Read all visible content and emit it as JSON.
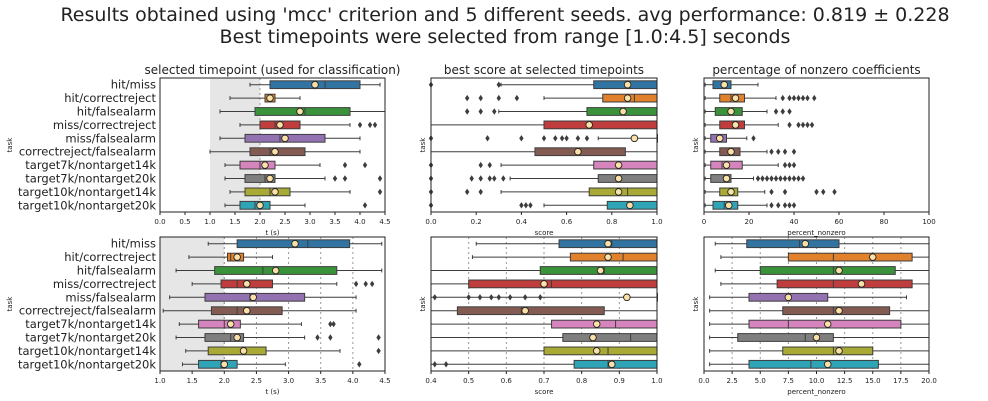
{
  "title_line1": "Results obtained using 'mcc' criterion and 5 different seeds.  avg performance: 0.819 ± 0.228",
  "title_line2": "Best timepoints were selected from range [1.0:4.5] seconds",
  "colors": [
    "#3274a1",
    "#e1812c",
    "#3a923a",
    "#c03d3e",
    "#9372b2",
    "#845b53",
    "#d684bd",
    "#7f7f7f",
    "#a9aa35",
    "#2fa4b7"
  ],
  "chart_data": [
    {
      "type": "box",
      "title": "selected timepoint (used for classification)",
      "xlabel": "t (s)",
      "ylabel": "task",
      "xlim": [
        0,
        4.5
      ],
      "xticks": [
        "0.0",
        "0.5",
        "1.0",
        "1.5",
        "2.0",
        "2.5",
        "3.0",
        "3.5",
        "4.0",
        "4.5"
      ],
      "shade": [
        1.0,
        2.0
      ],
      "vlines": [],
      "categories": [
        "hit/miss",
        "hit/correctreject",
        "hit/falsealarm",
        "miss/correctreject",
        "miss/falsealarm",
        "correctreject/falsealarm",
        "target7k/nontarget14k",
        "target7k/nontarget20k",
        "target10k/nontarget14k",
        "target10k/nontarget20k"
      ],
      "boxes": [
        {
          "wl": 1.8,
          "q1": 2.2,
          "med": 3.3,
          "q3": 4.0,
          "wh": 4.4,
          "mean": 3.1,
          "out": []
        },
        {
          "wl": 1.4,
          "q1": 2.1,
          "med": 2.2,
          "q3": 2.3,
          "wh": 2.8,
          "mean": 2.2,
          "out": []
        },
        {
          "wl": 1.2,
          "q1": 1.9,
          "med": 2.9,
          "q3": 3.8,
          "wh": 4.5,
          "mean": 2.8,
          "out": []
        },
        {
          "wl": 1.6,
          "q1": 2.0,
          "med": 2.3,
          "q3": 2.8,
          "wh": 3.8,
          "mean": 2.4,
          "out": [
            4.0,
            4.2,
            4.3
          ]
        },
        {
          "wl": 1.2,
          "q1": 1.7,
          "med": 2.4,
          "q3": 3.3,
          "wh": 4.0,
          "mean": 2.5,
          "out": []
        },
        {
          "wl": 1.0,
          "q1": 1.8,
          "med": 2.2,
          "q3": 2.9,
          "wh": 4.0,
          "mean": 2.3,
          "out": []
        },
        {
          "wl": 1.3,
          "q1": 1.6,
          "med": 2.0,
          "q3": 2.3,
          "wh": 3.2,
          "mean": 2.1,
          "out": [
            3.7,
            4.1
          ]
        },
        {
          "wl": 1.3,
          "q1": 1.7,
          "med": 2.1,
          "q3": 2.3,
          "wh": 3.3,
          "mean": 2.2,
          "out": [
            3.5,
            3.7,
            4.4
          ]
        },
        {
          "wl": 1.4,
          "q1": 1.7,
          "med": 2.2,
          "q3": 2.6,
          "wh": 3.8,
          "mean": 2.3,
          "out": [
            4.4
          ]
        },
        {
          "wl": 1.3,
          "q1": 1.6,
          "med": 1.9,
          "q3": 2.2,
          "wh": 2.9,
          "mean": 2.0,
          "out": [
            4.1
          ]
        }
      ]
    },
    {
      "type": "box",
      "title": "best score at selected timepoints",
      "xlabel": "score",
      "ylabel": "task",
      "xlim": [
        0,
        1.0
      ],
      "xticks": [
        "0.0",
        "0.2",
        "0.4",
        "0.6",
        "0.8",
        "1.0"
      ],
      "shade": null,
      "vlines": [],
      "categories": [
        "hit/miss",
        "hit/correctreject",
        "hit/falsealarm",
        "miss/correctreject",
        "miss/falsealarm",
        "correctreject/falsealarm",
        "target7k/nontarget14k",
        "target7k/nontarget20k",
        "target10k/nontarget14k",
        "target10k/nontarget20k"
      ],
      "boxes": [
        {
          "wl": 0.31,
          "q1": 0.72,
          "med": 0.88,
          "q3": 1.0,
          "wh": 1.0,
          "mean": 0.87,
          "out": [
            0.0,
            0.3
          ]
        },
        {
          "wl": 0.5,
          "q1": 0.76,
          "med": 0.9,
          "q3": 1.0,
          "wh": 1.0,
          "mean": 0.87,
          "out": [
            0.16,
            0.22,
            0.3,
            0.38
          ]
        },
        {
          "wl": 0.3,
          "q1": 0.69,
          "med": 0.85,
          "q3": 1.0,
          "wh": 1.0,
          "mean": 0.85,
          "out": [
            0.16,
            0.22,
            0.28
          ]
        },
        {
          "wl": 0.0,
          "q1": 0.5,
          "med": 0.7,
          "q3": 1.0,
          "wh": 1.0,
          "mean": 0.7,
          "out": []
        },
        {
          "wl": 0.74,
          "q1": 1.0,
          "med": 1.0,
          "q3": 1.0,
          "wh": 1.0,
          "mean": 0.9,
          "out": [
            0.0,
            0.25,
            0.4,
            0.5,
            0.55,
            0.58,
            0.6,
            0.65,
            0.69
          ]
        },
        {
          "wl": 0.0,
          "q1": 0.46,
          "med": 0.65,
          "q3": 0.86,
          "wh": 1.0,
          "mean": 0.65,
          "out": []
        },
        {
          "wl": 0.31,
          "q1": 0.72,
          "med": 0.83,
          "q3": 1.0,
          "wh": 1.0,
          "mean": 0.83,
          "out": [
            0.0,
            0.22,
            0.26
          ]
        },
        {
          "wl": 0.35,
          "q1": 0.74,
          "med": 0.83,
          "q3": 1.0,
          "wh": 1.0,
          "mean": 0.83,
          "out": [
            0.0,
            0.18,
            0.22,
            0.26,
            0.28,
            0.32
          ]
        },
        {
          "wl": 0.31,
          "q1": 0.7,
          "med": 0.87,
          "q3": 1.0,
          "wh": 1.0,
          "mean": 0.83,
          "out": [
            0.0,
            0.16,
            0.22
          ]
        },
        {
          "wl": 0.5,
          "q1": 0.78,
          "med": 0.88,
          "q3": 1.0,
          "wh": 1.0,
          "mean": 0.88,
          "out": [
            0.0,
            0.4,
            0.42,
            0.44
          ]
        }
      ]
    },
    {
      "type": "box",
      "title": "percentage of nonzero coefficients",
      "xlabel": "percent_nonzero",
      "ylabel": "task",
      "xlim": [
        0,
        100
      ],
      "xticks": [
        "0",
        "20",
        "40",
        "60",
        "80",
        "100"
      ],
      "shade": null,
      "vlines": [],
      "categories": [
        "hit/miss",
        "hit/correctreject",
        "hit/falsealarm",
        "miss/correctreject",
        "miss/falsealarm",
        "correctreject/falsealarm",
        "target7k/nontarget14k",
        "target7k/nontarget20k",
        "target10k/nontarget14k",
        "target10k/nontarget20k"
      ],
      "boxes": [
        {
          "wl": 0.5,
          "q1": 4,
          "med": 9,
          "q3": 12,
          "wh": 24,
          "mean": 9,
          "out": []
        },
        {
          "wl": 0.5,
          "q1": 7,
          "med": 12,
          "q3": 18,
          "wh": 32,
          "mean": 14,
          "out": [
            35,
            38,
            40,
            42,
            44,
            46,
            49
          ]
        },
        {
          "wl": 0.5,
          "q1": 5,
          "med": 12,
          "q3": 17,
          "wh": 28,
          "mean": 12,
          "out": [
            32,
            35,
            38
          ]
        },
        {
          "wl": 0.5,
          "q1": 7,
          "med": 13,
          "q3": 18,
          "wh": 33,
          "mean": 14,
          "out": [
            38,
            42,
            44,
            46,
            48
          ]
        },
        {
          "wl": 0.5,
          "q1": 3,
          "med": 7,
          "q3": 10,
          "wh": 19,
          "mean": 7,
          "out": [
            22
          ]
        },
        {
          "wl": 0.5,
          "q1": 7,
          "med": 12,
          "q3": 16,
          "wh": 28,
          "mean": 12,
          "out": [
            30,
            33,
            36,
            40
          ]
        },
        {
          "wl": 0.5,
          "q1": 3,
          "med": 8,
          "q3": 17,
          "wh": 33,
          "mean": 10,
          "out": [
            36,
            38,
            40
          ]
        },
        {
          "wl": 0.5,
          "q1": 3,
          "med": 9,
          "q3": 12,
          "wh": 22,
          "mean": 10,
          "out": [
            24,
            26,
            28,
            30,
            32,
            34,
            36,
            38,
            40,
            42,
            44
          ]
        },
        {
          "wl": 0.5,
          "q1": 7,
          "med": 12,
          "q3": 15,
          "wh": 27,
          "mean": 12,
          "out": [
            30,
            36,
            50,
            53,
            58
          ]
        },
        {
          "wl": 0.5,
          "q1": 4,
          "med": 9,
          "q3": 15,
          "wh": 28,
          "mean": 11,
          "out": [
            30,
            33,
            36,
            38,
            40
          ]
        }
      ]
    },
    {
      "type": "box",
      "title": "",
      "xlabel": "t (s)",
      "ylabel": "task",
      "xlim": [
        1.0,
        4.5
      ],
      "xticks": [
        "1.0",
        "1.5",
        "2.0",
        "2.5",
        "3.0",
        "3.5",
        "4.0",
        "4.5"
      ],
      "shade": [
        1.0,
        2.0
      ],
      "vlines": [
        2.0,
        2.5,
        3.0,
        3.5,
        4.0
      ],
      "categories": [
        "hit/miss",
        "hit/correctreject",
        "hit/falsealarm",
        "miss/correctreject",
        "miss/falsealarm",
        "correctreject/falsealarm",
        "target7k/nontarget14k",
        "target7k/nontarget20k",
        "target10k/nontarget14k",
        "target10k/nontarget20k"
      ],
      "boxes": [
        {
          "wl": 1.75,
          "q1": 2.2,
          "med": 3.3,
          "q3": 3.95,
          "wh": 4.45,
          "mean": 3.1,
          "out": []
        },
        {
          "wl": 1.45,
          "q1": 2.05,
          "med": 2.1,
          "q3": 2.3,
          "wh": 2.75,
          "mean": 2.2,
          "out": []
        },
        {
          "wl": 1.25,
          "q1": 1.85,
          "med": 2.6,
          "q3": 3.75,
          "wh": 4.45,
          "mean": 2.8,
          "out": []
        },
        {
          "wl": 1.5,
          "q1": 1.95,
          "med": 2.2,
          "q3": 2.75,
          "wh": 3.75,
          "mean": 2.35,
          "out": [
            4.05,
            4.2,
            4.3
          ]
        },
        {
          "wl": 1.15,
          "q1": 1.7,
          "med": 2.4,
          "q3": 3.25,
          "wh": 4.05,
          "mean": 2.45,
          "out": []
        },
        {
          "wl": 1.05,
          "q1": 1.8,
          "med": 2.2,
          "q3": 2.9,
          "wh": 4.05,
          "mean": 2.35,
          "out": []
        },
        {
          "wl": 1.3,
          "q1": 1.6,
          "med": 2.0,
          "q3": 2.25,
          "wh": 3.2,
          "mean": 2.1,
          "out": [
            3.65,
            3.7
          ]
        },
        {
          "wl": 1.25,
          "q1": 1.7,
          "med": 2.1,
          "q3": 2.3,
          "wh": 3.25,
          "mean": 2.2,
          "out": [
            3.45,
            3.65,
            4.4
          ]
        },
        {
          "wl": 1.4,
          "q1": 1.75,
          "med": 2.3,
          "q3": 2.65,
          "wh": 3.8,
          "mean": 2.3,
          "out": [
            4.4
          ]
        },
        {
          "wl": 1.35,
          "q1": 1.6,
          "med": 1.95,
          "q3": 2.2,
          "wh": 2.95,
          "mean": 2.0,
          "out": [
            4.1
          ]
        }
      ]
    },
    {
      "type": "box",
      "title": "",
      "xlabel": "score",
      "ylabel": "task",
      "xlim": [
        0.4,
        1.0
      ],
      "xticks": [
        "0.4",
        "0.5",
        "0.6",
        "0.7",
        "0.8",
        "0.9",
        "1.0"
      ],
      "shade": null,
      "vlines": [
        0.5,
        0.6,
        0.7,
        0.8,
        0.9
      ],
      "categories": [
        "hit/miss",
        "hit/correctreject",
        "hit/falsealarm",
        "miss/correctreject",
        "miss/falsealarm",
        "correctreject/falsealarm",
        "target7k/nontarget14k",
        "target7k/nontarget20k",
        "target10k/nontarget14k",
        "target10k/nontarget20k"
      ],
      "boxes": [
        {
          "wl": 0.52,
          "q1": 0.74,
          "med": 0.88,
          "q3": 1.0,
          "wh": 1.0,
          "mean": 0.87,
          "out": []
        },
        {
          "wl": 0.51,
          "q1": 0.77,
          "med": 0.91,
          "q3": 1.0,
          "wh": 1.0,
          "mean": 0.87,
          "out": []
        },
        {
          "wl": 0.4,
          "q1": 0.69,
          "med": 0.86,
          "q3": 1.0,
          "wh": 1.0,
          "mean": 0.85,
          "out": []
        },
        {
          "wl": 0.4,
          "q1": 0.5,
          "med": 0.72,
          "q3": 1.0,
          "wh": 1.0,
          "mean": 0.7,
          "out": []
        },
        {
          "wl": 0.4,
          "q1": 1.0,
          "med": 1.0,
          "q3": 1.0,
          "wh": 1.0,
          "mean": 0.92,
          "out": [
            0.41,
            0.5,
            0.53,
            0.56,
            0.58,
            0.61,
            0.65,
            0.69
          ]
        },
        {
          "wl": 0.4,
          "q1": 0.47,
          "med": 0.64,
          "q3": 0.86,
          "wh": 1.0,
          "mean": 0.65,
          "out": []
        },
        {
          "wl": 0.4,
          "q1": 0.72,
          "med": 0.89,
          "q3": 1.0,
          "wh": 1.0,
          "mean": 0.84,
          "out": []
        },
        {
          "wl": 0.4,
          "q1": 0.75,
          "med": 0.93,
          "q3": 1.0,
          "wh": 1.0,
          "mean": 0.83,
          "out": []
        },
        {
          "wl": 0.4,
          "q1": 0.7,
          "med": 0.87,
          "q3": 1.0,
          "wh": 1.0,
          "mean": 0.84,
          "out": []
        },
        {
          "wl": 0.4,
          "q1": 0.78,
          "med": 0.87,
          "q3": 1.0,
          "wh": 1.0,
          "mean": 0.88,
          "out": [
            0.41,
            0.44
          ]
        }
      ]
    },
    {
      "type": "box",
      "title": "",
      "xlabel": "percent_nonzero",
      "ylabel": "task",
      "xlim": [
        0,
        20
      ],
      "xticks": [
        "0.0",
        "2.5",
        "5.0",
        "7.5",
        "10.0",
        "12.5",
        "15.0",
        "17.5",
        "20.0"
      ],
      "shade": null,
      "vlines": [
        2.5,
        5.0,
        7.5,
        10.0,
        12.5,
        15.0,
        17.5
      ],
      "categories": [
        "hit/miss",
        "hit/correctreject",
        "hit/falsealarm",
        "miss/correctreject",
        "miss/falsealarm",
        "correctreject/falsealarm",
        "target7k/nontarget14k",
        "target7k/nontarget20k",
        "target10k/nontarget14k",
        "target10k/nontarget20k"
      ],
      "boxes": [
        {
          "wl": 1.0,
          "q1": 3.8,
          "med": 8.5,
          "q3": 12.0,
          "wh": 20.0,
          "mean": 9.0,
          "out": []
        },
        {
          "wl": 1.5,
          "q1": 7.5,
          "med": 11.5,
          "q3": 18.5,
          "wh": 20.0,
          "mean": 15.0,
          "out": []
        },
        {
          "wl": 1.0,
          "q1": 5.0,
          "med": 11.5,
          "q3": 17.0,
          "wh": 20.0,
          "mean": 12.0,
          "out": []
        },
        {
          "wl": 1.5,
          "q1": 6.5,
          "med": 11.5,
          "q3": 18.5,
          "wh": 20.0,
          "mean": 14.0,
          "out": []
        },
        {
          "wl": 0.5,
          "q1": 4.0,
          "med": 7.5,
          "q3": 11.0,
          "wh": 18.0,
          "mean": 7.5,
          "out": []
        },
        {
          "wl": 0.5,
          "q1": 7.0,
          "med": 11.5,
          "q3": 16.5,
          "wh": 20.0,
          "mean": 12.0,
          "out": []
        },
        {
          "wl": 0.5,
          "q1": 4.0,
          "med": 7.5,
          "q3": 17.5,
          "wh": 20.0,
          "mean": 11.0,
          "out": []
        },
        {
          "wl": 0.5,
          "q1": 3.0,
          "med": 9.0,
          "q3": 11.5,
          "wh": 20.0,
          "mean": 10.0,
          "out": []
        },
        {
          "wl": 0.5,
          "q1": 7.0,
          "med": 11.5,
          "q3": 15.0,
          "wh": 20.0,
          "mean": 12.0,
          "out": []
        },
        {
          "wl": 0.5,
          "q1": 4.0,
          "med": 9.5,
          "q3": 15.5,
          "wh": 20.0,
          "mean": 11.0,
          "out": []
        }
      ]
    }
  ]
}
